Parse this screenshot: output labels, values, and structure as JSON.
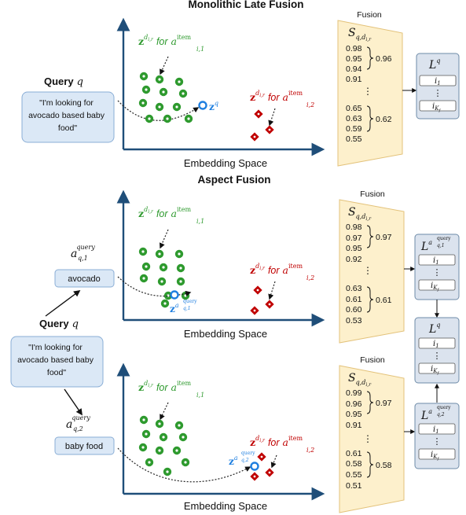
{
  "colors": {
    "axis": "#1f4e79",
    "green": "#2e9a2e",
    "red": "#c00000",
    "blue": "#1f7fe0",
    "query_box_fill": "#dbe8f6",
    "query_box_stroke": "#8aaed6",
    "fusion_fill": "#fdf0cc",
    "fusion_stroke": "#e3c27a",
    "list_fill": "#dbe3ee",
    "list_stroke": "#6e8ba8"
  },
  "icons": {
    "item_marker_green": "green-ring-dot",
    "item_marker_red": "red-diamond-dot",
    "query_marker": "blue-ring"
  },
  "top": {
    "title": "Monolithic Late Fusion",
    "query_label": "Query",
    "query_var": "q",
    "query_text": [
      "\"I'm looking for",
      "avocado based baby",
      "food\""
    ],
    "green_label": {
      "vec": "z",
      "sup": "d",
      "sup_sub": "i,r",
      "for": "for",
      "a": "a",
      "a_sub": "i,1",
      "a_sup": "item"
    },
    "red_label": {
      "vec": "z",
      "sup": "d",
      "sup_sub": "i,r",
      "for": "for",
      "a": "a",
      "a_sub": "i,2",
      "a_sup": "item"
    },
    "query_vec": {
      "vec": "z",
      "sup": "q"
    },
    "axis_label": "Embedding Space",
    "fusion_label": "Fusion",
    "s_label": {
      "base": "S",
      "sub": "q,d",
      "sub2": "i,r"
    },
    "scores_top": [
      "0.98",
      "0.95",
      "0.94",
      "0.91"
    ],
    "fused_top": "0.96",
    "dots": "⋮",
    "scores_bottom": [
      "0.65",
      "0.63",
      "0.59",
      "0.55"
    ],
    "fused_bottom": "0.62",
    "list_label": {
      "base": "L",
      "sup": "q"
    },
    "list_items": [
      {
        "base": "i",
        "sub": "1"
      },
      {
        "base": "i",
        "sub": "K",
        "sub2": "f"
      }
    ]
  },
  "aspect": {
    "title": "Aspect Fusion",
    "query_label": "Query",
    "query_var": "q",
    "query_text": [
      "\"I'm looking for",
      "avocado based baby",
      "food\""
    ],
    "aspect1": {
      "label": "avocado",
      "a": "a",
      "sup": "query",
      "sub": "q,1"
    },
    "aspect2": {
      "label": "baby food",
      "a": "a",
      "sup": "query",
      "sub": "q,2"
    },
    "panel1": {
      "green_label": {
        "vec": "z",
        "sup": "d",
        "sup_sub": "i,r",
        "for": "for",
        "a": "a",
        "a_sub": "i,1",
        "a_sup": "item"
      },
      "red_label": {
        "vec": "z",
        "sup": "d",
        "sup_sub": "i,r",
        "for": "for",
        "a": "a",
        "a_sub": "i,2",
        "a_sup": "item"
      },
      "query_vec": {
        "vec": "z",
        "sup": "a",
        "sup_sub": "q,1",
        "sup_sup": "query"
      },
      "axis_label": "Embedding Space",
      "fusion_label": "Fusion",
      "s_label": {
        "base": "S",
        "sub": "q,d",
        "sub2": "i,r"
      },
      "scores_top": [
        "0.98",
        "0.97",
        "0.95",
        "0.92"
      ],
      "fused_top": "0.97",
      "dots": "⋮",
      "scores_bottom": [
        "0.63",
        "0.61",
        "0.60",
        "0.53"
      ],
      "fused_bottom": "0.61",
      "list_label": {
        "base": "L",
        "sup": "a",
        "sup_sub": "q,1",
        "sup_sup": "query"
      },
      "list_items": [
        {
          "base": "i",
          "sub": "1"
        },
        {
          "base": "i",
          "sub": "K",
          "sub2": "f"
        }
      ]
    },
    "panel2": {
      "green_label": {
        "vec": "z",
        "sup": "d",
        "sup_sub": "i,r",
        "for": "for",
        "a": "a",
        "a_sub": "i,1",
        "a_sup": "item"
      },
      "red_label": {
        "vec": "z",
        "sup": "d",
        "sup_sub": "i,r",
        "for": "for",
        "a": "a",
        "a_sub": "i,2",
        "a_sup": "item"
      },
      "query_vec": {
        "vec": "z",
        "sup": "a",
        "sup_sub": "q,2",
        "sup_sup": "query"
      },
      "axis_label": "Embedding Space",
      "fusion_label": "Fusion",
      "s_label": {
        "base": "S",
        "sub": "q,d",
        "sub2": "i,r"
      },
      "scores_top": [
        "0.99",
        "0.96",
        "0.95",
        "0.91"
      ],
      "fused_top": "0.97",
      "dots": "⋮",
      "scores_bottom": [
        "0.61",
        "0.58",
        "0.55",
        "0.51"
      ],
      "fused_bottom": "0.58",
      "list_label": {
        "base": "L",
        "sup": "a",
        "sup_sub": "q,2",
        "sup_sup": "query"
      },
      "list_items": [
        {
          "base": "i",
          "sub": "1"
        },
        {
          "base": "i",
          "sub": "K",
          "sub2": "f"
        }
      ]
    },
    "combined_list": {
      "label": {
        "base": "L",
        "sup": "q"
      },
      "items": [
        {
          "base": "i",
          "sub": "1"
        },
        {
          "base": "i",
          "sub": "K",
          "sub2": "f"
        }
      ]
    }
  }
}
